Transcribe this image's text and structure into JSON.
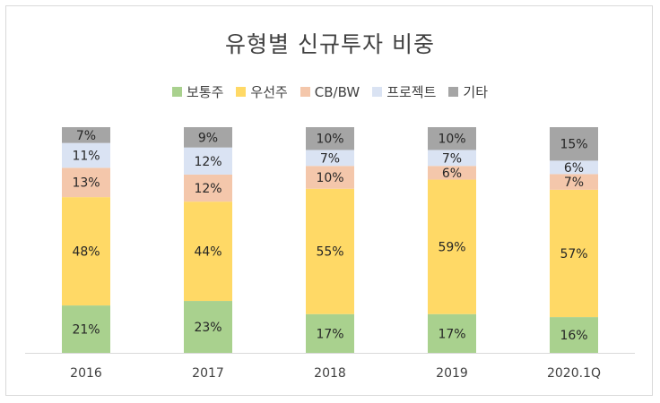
{
  "chart_data": {
    "type": "bar",
    "stacked": true,
    "title": "유형별 신규투자 비중",
    "xlabel": "",
    "ylabel": "",
    "ylim": [
      0,
      100
    ],
    "grid": false,
    "legend_position": "top",
    "categories": [
      "2016",
      "2017",
      "2018",
      "2019",
      "2020.1Q"
    ],
    "series": [
      {
        "name": "보통주",
        "color": "#a9d18e",
        "values": [
          21,
          23,
          17,
          17,
          16
        ]
      },
      {
        "name": "우선주",
        "color": "#ffd966",
        "values": [
          48,
          44,
          55,
          59,
          57
        ]
      },
      {
        "name": "CB/BW",
        "color": "#f4c7ab",
        "values": [
          13,
          12,
          10,
          6,
          7
        ]
      },
      {
        "name": "프로젝트",
        "color": "#dae3f3",
        "values": [
          11,
          12,
          7,
          7,
          6
        ]
      },
      {
        "name": "기타",
        "color": "#a5a5a5",
        "values": [
          7,
          9,
          10,
          10,
          15
        ]
      }
    ]
  }
}
